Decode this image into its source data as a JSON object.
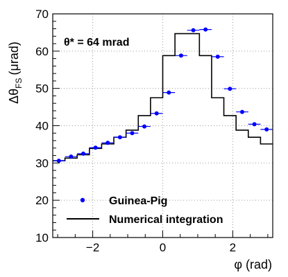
{
  "chart_data": {
    "type": "scatter",
    "title": "",
    "xlabel": "φ (rad)",
    "ylabel_main": "Δθ",
    "ylabel_sub": "FS",
    "ylabel_unit": "(μrad)",
    "annotation": "θ* = 64 mrad",
    "xlim": [
      -3.1416,
      3.1416
    ],
    "ylim": [
      10,
      70
    ],
    "xticks": [
      -2,
      0,
      2
    ],
    "xtick_labels": [
      "−2",
      "0",
      "2"
    ],
    "yticks": [
      10,
      20,
      30,
      40,
      50,
      60,
      70
    ],
    "ytick_labels": [
      "10",
      "20",
      "30",
      "40",
      "50",
      "60",
      "70"
    ],
    "grid": true,
    "legend_position": "bottom-left",
    "series": [
      {
        "name": "Guinea-Pig",
        "kind": "points",
        "color": "#0000ff",
        "x": [
          -2.967,
          -2.618,
          -2.269,
          -1.92,
          -1.571,
          -1.222,
          -0.873,
          -0.524,
          -0.175,
          0.175,
          0.524,
          0.873,
          1.222,
          1.571,
          1.92,
          2.269,
          2.618,
          2.967
        ],
        "xerr": 0.175,
        "y": [
          30.6,
          31.7,
          32.5,
          34.1,
          35.4,
          36.9,
          38.0,
          39.8,
          43.3,
          48.9,
          58.8,
          65.6,
          65.8,
          58.5,
          49.9,
          43.7,
          40.4,
          39.0
        ]
      },
      {
        "name": "Numerical integration",
        "kind": "step",
        "color": "#000000",
        "edges": [
          -3.1416,
          -2.7925,
          -2.4435,
          -2.0944,
          -1.7453,
          -1.3963,
          -1.0472,
          -0.6981,
          -0.3491,
          0.0,
          0.3491,
          0.6981,
          1.0472,
          1.3963,
          1.7453,
          2.0944,
          2.4435,
          2.7925,
          3.1416
        ],
        "y": [
          30.6,
          31.3,
          32.2,
          33.9,
          35.1,
          36.9,
          38.8,
          42.7,
          47.5,
          58.8,
          64.7,
          64.7,
          58.8,
          47.5,
          42.7,
          38.8,
          36.9,
          35.1
        ]
      }
    ]
  }
}
